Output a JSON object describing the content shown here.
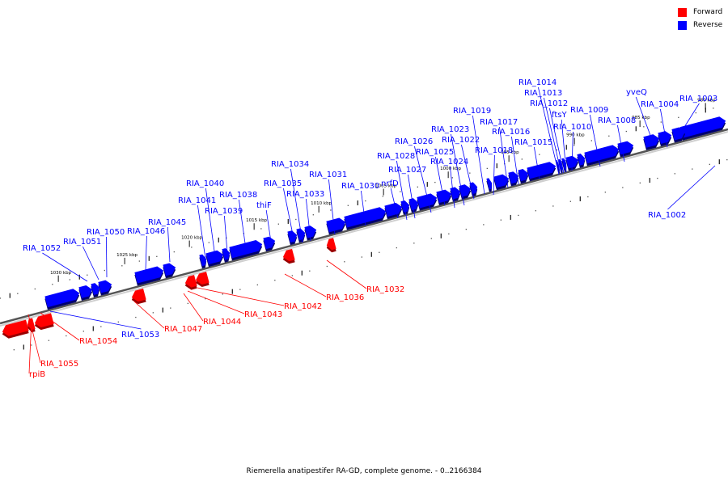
{
  "title": "Riemerella anatipestifer RA-GD, complete genome. - 0..2166384",
  "legend": [
    {
      "label": "Forward",
      "color": "#ff0000"
    },
    {
      "label": "Reverse",
      "color": "#0000ff"
    }
  ],
  "colors": {
    "forward": "#ff0000",
    "reverse": "#0000ff",
    "axis": "#555555"
  },
  "kbp_labels": [
    "980 kbp",
    "985 kbp",
    "990 kbp",
    "995 kbp",
    "1000 kbp",
    "1005 kbp",
    "1010 kbp",
    "1015 kbp",
    "1020 kbp",
    "1025 kbp",
    "1030 kbp"
  ],
  "reverse_genes": [
    "RIA_1002",
    "RIA_1003",
    "RIA_1004",
    "yveQ",
    "RIA_1008",
    "RIA_1009",
    "RIA_1010",
    "ftsY",
    "RIA_1012",
    "RIA_1013",
    "RIA_1014",
    "RIA_1015",
    "RIA_1016",
    "RIA_1017",
    "RIA_1018",
    "RIA_1019",
    "RIA_1022",
    "RIA_1023",
    "RIA_1024",
    "RIA_1025",
    "RIA_1026",
    "RIA_1027",
    "RIA_1028",
    "nrfD",
    "RIA_1030",
    "RIA_1031",
    "RIA_1033",
    "RIA_1034",
    "RIA_1035",
    "thiF",
    "RIA_1038",
    "RIA_1039",
    "RIA_1040",
    "RIA_1041",
    "RIA_1045",
    "RIA_1046",
    "RIA_1050",
    "RIA_1051",
    "RIA_1052",
    "RIA_1053"
  ],
  "forward_genes": [
    "RIA_1032",
    "RIA_1036",
    "RIA_1042",
    "RIA_1043",
    "RIA_1044",
    "RIA_1047",
    "RIA_1054",
    "RIA_1055",
    "rpiB"
  ]
}
